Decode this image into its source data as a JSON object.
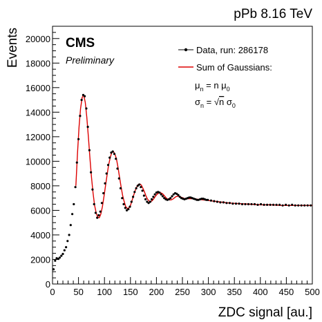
{
  "chart_data": {
    "type": "scatter",
    "energy_label": "pPb 8.16 TeV",
    "experiment": "CMS",
    "status": "Preliminary",
    "xlabel": "ZDC signal [au.]",
    "ylabel": "Events",
    "xlim": [
      0,
      500
    ],
    "ylim": [
      0,
      21000
    ],
    "x_ticks": [
      "0",
      "50",
      "100",
      "150",
      "200",
      "250",
      "300",
      "350",
      "400",
      "450",
      "500"
    ],
    "y_ticks": [
      "0",
      "2000",
      "4000",
      "6000",
      "8000",
      "10000",
      "12000",
      "14000",
      "16000",
      "18000",
      "20000"
    ],
    "legend": {
      "placement": "top-right",
      "data_label": "Data, run: 286178",
      "fit_label": "Sum of Gaussians:",
      "formula_mu": "μ_n = n μ_0",
      "formula_sigma": "σ_n = √n σ_0"
    },
    "colors": {
      "data": "#000000",
      "fit": "#dd0000"
    },
    "series": [
      {
        "name": "Data, run: 286178",
        "x": [
          2,
          5,
          8,
          11,
          14,
          17,
          20,
          23,
          26,
          29,
          32,
          35,
          38,
          41,
          44,
          47,
          50,
          53,
          56,
          59,
          62,
          65,
          68,
          71,
          74,
          77,
          80,
          83,
          86,
          89,
          92,
          95,
          98,
          101,
          104,
          107,
          110,
          113,
          116,
          119,
          122,
          125,
          128,
          131,
          134,
          137,
          140,
          143,
          146,
          149,
          152,
          155,
          158,
          161,
          164,
          167,
          170,
          173,
          176,
          179,
          182,
          185,
          188,
          191,
          194,
          197,
          200,
          203,
          206,
          209,
          212,
          215,
          218,
          221,
          224,
          227,
          230,
          233,
          236,
          239,
          242,
          245,
          248,
          251,
          254,
          257,
          260,
          263,
          266,
          269,
          272,
          275,
          278,
          281,
          284,
          287,
          290,
          293,
          296,
          299,
          305,
          311,
          317,
          323,
          329,
          335,
          341,
          347,
          353,
          359,
          365,
          371,
          377,
          383,
          389,
          395,
          401,
          407,
          413,
          419,
          425,
          431,
          437,
          443,
          449,
          455,
          461,
          467,
          473,
          479,
          485,
          491,
          497
        ],
        "y": [
          1200,
          1900,
          2100,
          2050,
          2150,
          2300,
          2450,
          2750,
          3000,
          3500,
          4000,
          4800,
          5700,
          6500,
          7900,
          9900,
          11800,
          13700,
          15000,
          15400,
          15300,
          14300,
          12800,
          10900,
          9100,
          7700,
          6500,
          5800,
          5400,
          5600,
          5900,
          6600,
          7400,
          8200,
          9000,
          9700,
          10300,
          10700,
          10800,
          10600,
          10200,
          9400,
          8600,
          7800,
          7000,
          6500,
          6200,
          6000,
          6100,
          6300,
          6700,
          7100,
          7500,
          7800,
          8000,
          8100,
          7900,
          7600,
          7200,
          6900,
          6700,
          6600,
          6700,
          6900,
          7100,
          7300,
          7450,
          7500,
          7450,
          7300,
          7150,
          7000,
          6900,
          6850,
          6900,
          7000,
          7150,
          7300,
          7400,
          7350,
          7250,
          7100,
          7000,
          6950,
          6900,
          6950,
          7000,
          7050,
          7050,
          7000,
          6950,
          6900,
          6850,
          6850,
          6900,
          6950,
          6950,
          6900,
          6850,
          6850,
          6800,
          6750,
          6700,
          6650,
          6650,
          6600,
          6600,
          6550,
          6550,
          6550,
          6500,
          6500,
          6500,
          6500,
          6500,
          6450,
          6500,
          6450,
          6450,
          6450,
          6450,
          6450,
          6450,
          6400,
          6450,
          6400,
          6450,
          6400,
          6400,
          6400,
          6400,
          6400,
          6400
        ]
      },
      {
        "name": "Sum of Gaussians:",
        "x": [
          45,
          48,
          51,
          54,
          57,
          60,
          63,
          66,
          69,
          72,
          75,
          78,
          81,
          84,
          87,
          90,
          93,
          96,
          99,
          102,
          105,
          108,
          111,
          114,
          117,
          120,
          123,
          126,
          129,
          132,
          135,
          138,
          141,
          144,
          147,
          150,
          153,
          156,
          159,
          162,
          165,
          168,
          171,
          174,
          177,
          180,
          183,
          186,
          189,
          192,
          195,
          198,
          201,
          204,
          207,
          210,
          213,
          216,
          219,
          222,
          225,
          228,
          231,
          234,
          237,
          240,
          243,
          246,
          249,
          252,
          255,
          258,
          261,
          264,
          267,
          270,
          280,
          290,
          300,
          320,
          340,
          360,
          380,
          400,
          420,
          440,
          460,
          480,
          500
        ],
        "y": [
          8000,
          10600,
          12800,
          14300,
          15200,
          15400,
          14800,
          13600,
          12000,
          10300,
          8700,
          7400,
          6400,
          5800,
          5450,
          5400,
          5700,
          6300,
          7100,
          8000,
          8900,
          9700,
          10300,
          10700,
          10800,
          10600,
          10200,
          9500,
          8700,
          7900,
          7200,
          6700,
          6300,
          6150,
          6200,
          6400,
          6800,
          7200,
          7600,
          7900,
          8100,
          8150,
          8050,
          7800,
          7500,
          7150,
          6900,
          6750,
          6700,
          6800,
          6950,
          7150,
          7300,
          7400,
          7450,
          7400,
          7300,
          7150,
          7000,
          6900,
          6850,
          6850,
          6900,
          7000,
          7100,
          7150,
          7150,
          7100,
          7050,
          7000,
          6950,
          6950,
          6950,
          6950,
          6950,
          6950,
          6900,
          6850,
          6800,
          6700,
          6600,
          6550,
          6500,
          6450,
          6450,
          6400,
          6400,
          6400,
          6400
        ]
      }
    ]
  }
}
